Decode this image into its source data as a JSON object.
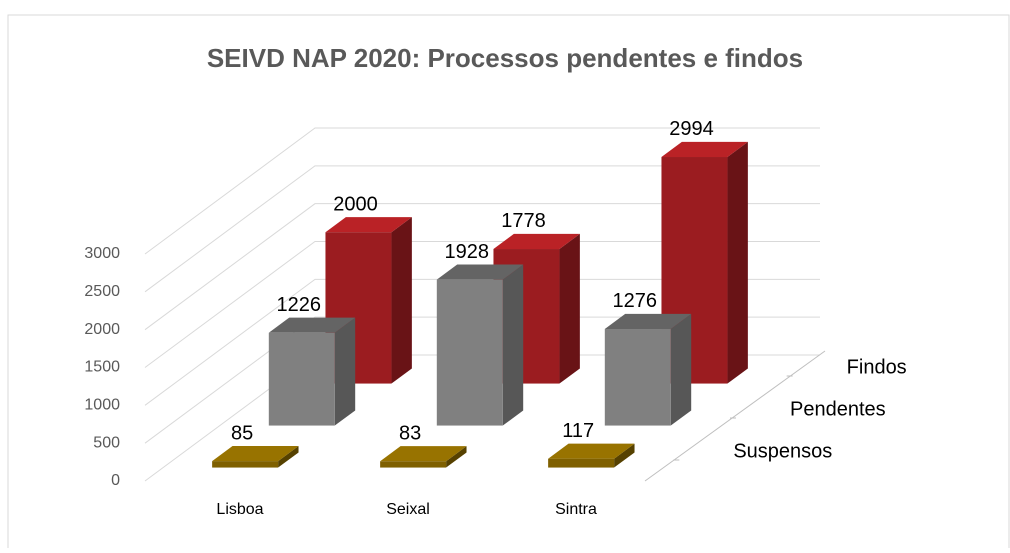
{
  "chart_data": {
    "type": "bar3d",
    "title": "SEIVD NAP 2020: Processos pendentes e findos",
    "categories": [
      "Lisboa",
      "Seixal",
      "Sintra"
    ],
    "series": [
      {
        "name": "Suspensos",
        "color": "#7f6000",
        "values": [
          85,
          83,
          117
        ]
      },
      {
        "name": "Pendentes",
        "color": "#808080",
        "values": [
          1226,
          1928,
          1276
        ]
      },
      {
        "name": "Findos",
        "color": "#9b1c20",
        "values": [
          2000,
          1778,
          2994
        ]
      }
    ],
    "ylim": [
      0,
      3000
    ],
    "yticks": [
      0,
      500,
      1000,
      1500,
      2000,
      2500,
      3000
    ],
    "grid": true
  }
}
